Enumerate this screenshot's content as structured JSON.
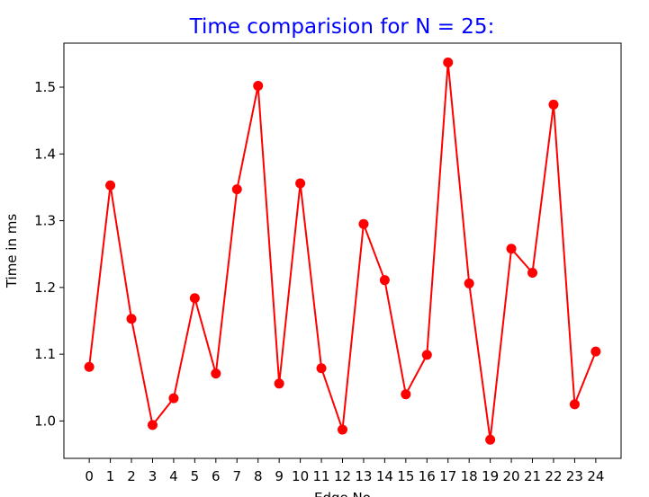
{
  "chart_data": {
    "type": "line",
    "title": "Time comparision for N = 25:",
    "xlabel": "Edge No",
    "ylabel": "Time in ms",
    "x": [
      0,
      1,
      2,
      3,
      4,
      5,
      6,
      7,
      8,
      9,
      10,
      11,
      12,
      13,
      14,
      15,
      16,
      17,
      18,
      19,
      20,
      21,
      22,
      23,
      24
    ],
    "series": [
      {
        "values": [
          1.081,
          1.353,
          1.153,
          0.994,
          1.034,
          1.184,
          1.071,
          1.347,
          1.502,
          1.056,
          1.356,
          1.079,
          0.987,
          1.295,
          1.211,
          1.04,
          1.099,
          1.537,
          1.206,
          0.972,
          1.258,
          1.222,
          1.474,
          1.025,
          1.104
        ]
      }
    ],
    "xticks": [
      "0",
      "1",
      "2",
      "3",
      "4",
      "5",
      "6",
      "7",
      "8",
      "9",
      "10",
      "11",
      "12",
      "13",
      "14",
      "15",
      "16",
      "17",
      "18",
      "19",
      "20",
      "21",
      "22",
      "23",
      "24"
    ],
    "yticks": [
      "1.0",
      "1.1",
      "1.2",
      "1.3",
      "1.4",
      "1.5"
    ],
    "ytick_values": [
      1.0,
      1.1,
      1.2,
      1.3,
      1.4,
      1.5
    ],
    "xlim": [
      -1.2,
      25.2
    ],
    "ylim": [
      0.944,
      1.566
    ],
    "grid": false,
    "legend": false,
    "colors": {
      "title": "#0000ff",
      "line": "#ff0000",
      "marker": "#ff0000",
      "axes": "#000000"
    }
  }
}
